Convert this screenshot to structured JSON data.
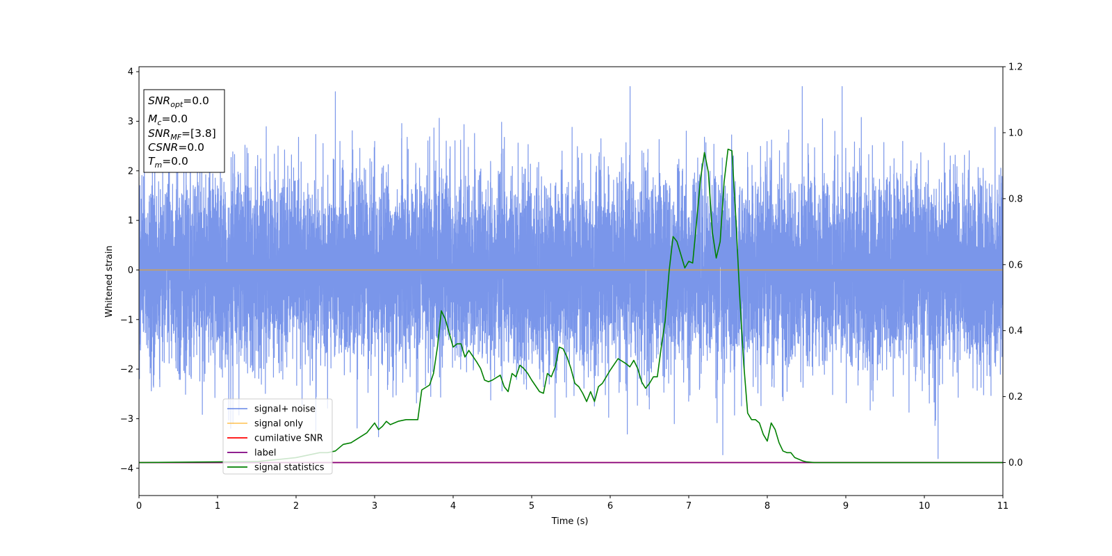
{
  "chart_data": {
    "type": "line",
    "xlabel": "Time (s)",
    "ylabel": "Whitened strain",
    "xlim": [
      0,
      11
    ],
    "ylim_left": [
      -4.55,
      4.1
    ],
    "ylim_right": [
      -0.1,
      1.2
    ],
    "x_ticks": [
      0,
      1,
      2,
      3,
      4,
      5,
      6,
      7,
      8,
      9,
      10,
      11
    ],
    "y_left_ticks": [
      -4,
      -3,
      -2,
      -1,
      0,
      1,
      2,
      3,
      4
    ],
    "y_right_ticks": [
      0.0,
      0.2,
      0.4,
      0.6,
      0.8,
      1.0,
      1.2
    ],
    "grid": false,
    "legend_position": "lower-left",
    "stats_box": [
      {
        "base": "SNR",
        "sub": "opt",
        "value": "=0.0"
      },
      {
        "base": "M",
        "sub": "c",
        "value": "=0.0"
      },
      {
        "base": "SNR",
        "sub": "MF",
        "value": "=[3.8]"
      },
      {
        "base": "CSNR",
        "sub": "",
        "value": "=0.0"
      },
      {
        "base": "T",
        "sub": "m",
        "value": "=0.0"
      }
    ],
    "series": [
      {
        "name": "signal+ noise",
        "color": "#4169e1",
        "axis": "left",
        "kind": "noise",
        "sample_rate": 1024,
        "std": 0.95,
        "approx_range": [
          -4.15,
          3.7
        ]
      },
      {
        "name": "signal only",
        "color": "#ffa500",
        "axis": "left",
        "x": [
          0,
          11
        ],
        "y": [
          0,
          0
        ]
      },
      {
        "name": "cumilative SNR",
        "color": "#ff0000",
        "axis": "right",
        "x": [
          0,
          11
        ],
        "y": [
          0,
          0
        ]
      },
      {
        "name": "label",
        "color": "#800080",
        "axis": "right",
        "x": [
          0,
          11
        ],
        "y": [
          0,
          0
        ]
      },
      {
        "name": "signal statistics",
        "color": "#008000",
        "axis": "right",
        "x": [
          0,
          0.5,
          1.0,
          1.5,
          1.8,
          2.0,
          2.2,
          2.3,
          2.4,
          2.5,
          2.6,
          2.7,
          2.8,
          2.9,
          2.95,
          3.0,
          3.05,
          3.1,
          3.15,
          3.2,
          3.3,
          3.4,
          3.5,
          3.55,
          3.6,
          3.7,
          3.75,
          3.8,
          3.85,
          3.9,
          4.0,
          4.05,
          4.1,
          4.15,
          4.2,
          4.3,
          4.35,
          4.4,
          4.45,
          4.5,
          4.6,
          4.65,
          4.7,
          4.75,
          4.8,
          4.85,
          4.9,
          4.95,
          5.0,
          5.1,
          5.15,
          5.2,
          5.25,
          5.3,
          5.35,
          5.4,
          5.45,
          5.5,
          5.55,
          5.6,
          5.65,
          5.7,
          5.75,
          5.8,
          5.85,
          5.9,
          5.95,
          6.0,
          6.1,
          6.2,
          6.25,
          6.3,
          6.35,
          6.4,
          6.45,
          6.5,
          6.55,
          6.6,
          6.65,
          6.7,
          6.75,
          6.8,
          6.85,
          6.9,
          6.95,
          7.0,
          7.05,
          7.1,
          7.15,
          7.2,
          7.25,
          7.3,
          7.35,
          7.4,
          7.45,
          7.5,
          7.55,
          7.6,
          7.65,
          7.7,
          7.75,
          7.8,
          7.85,
          7.9,
          7.95,
          8.0,
          8.05,
          8.1,
          8.15,
          8.2,
          8.25,
          8.3,
          8.35,
          8.4,
          8.45,
          8.5,
          8.55,
          8.6,
          8.65,
          8.7,
          8.75,
          8.8,
          8.9,
          9.0,
          9.2,
          9.5,
          11.0
        ],
        "y": [
          0.0,
          0.001,
          0.002,
          0.003,
          0.01,
          0.015,
          0.025,
          0.03,
          0.03,
          0.035,
          0.055,
          0.06,
          0.075,
          0.09,
          0.105,
          0.12,
          0.1,
          0.11,
          0.125,
          0.115,
          0.125,
          0.13,
          0.13,
          0.13,
          0.22,
          0.235,
          0.27,
          0.35,
          0.46,
          0.435,
          0.35,
          0.36,
          0.36,
          0.32,
          0.34,
          0.305,
          0.285,
          0.25,
          0.245,
          0.25,
          0.265,
          0.23,
          0.215,
          0.27,
          0.26,
          0.295,
          0.285,
          0.27,
          0.25,
          0.215,
          0.21,
          0.27,
          0.26,
          0.29,
          0.35,
          0.345,
          0.32,
          0.285,
          0.24,
          0.23,
          0.21,
          0.185,
          0.215,
          0.185,
          0.23,
          0.24,
          0.26,
          0.28,
          0.315,
          0.3,
          0.29,
          0.31,
          0.285,
          0.245,
          0.225,
          0.24,
          0.26,
          0.26,
          0.35,
          0.43,
          0.58,
          0.685,
          0.67,
          0.63,
          0.59,
          0.61,
          0.605,
          0.73,
          0.86,
          0.94,
          0.88,
          0.7,
          0.62,
          0.67,
          0.85,
          0.95,
          0.945,
          0.74,
          0.5,
          0.3,
          0.15,
          0.13,
          0.13,
          0.12,
          0.085,
          0.065,
          0.12,
          0.1,
          0.06,
          0.035,
          0.03,
          0.03,
          0.015,
          0.01,
          0.005,
          0.002,
          0.001,
          0.0,
          0.0,
          0.0,
          0.0,
          0.0,
          0.0,
          0.0,
          0.0,
          0.0,
          0.0
        ]
      }
    ]
  }
}
